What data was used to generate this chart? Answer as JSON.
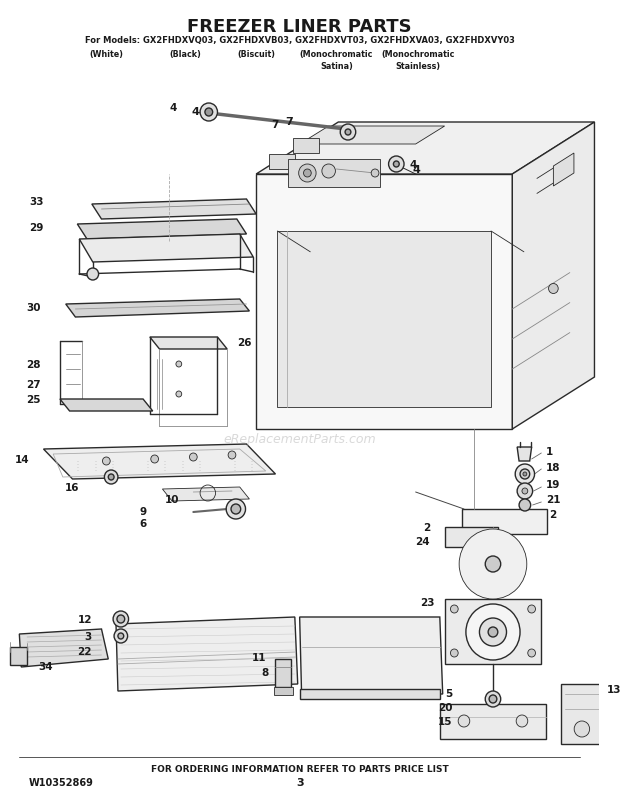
{
  "title": "FREEZER LINER PARTS",
  "sub1": "For Models: GX2FHDXVQ03, GX2FHDXVB03, GX2FHDXVT03, GX2FHDXVA03, GX2FHDXVY03",
  "sub2a": "(White)",
  "sub2b": "(Black)",
  "sub2c": "(Biscuit)",
  "sub2d": "(Monochromatic",
  "sub2e": "(Monochromatic",
  "sub3d": "Satina)",
  "sub3e": "Stainless)",
  "footer_left": "W10352869",
  "footer_center": "FOR ORDERING INFORMATION REFER TO PARTS PRICE LIST",
  "footer_page": "3",
  "watermark": "eReplacementParts.com",
  "bg": "#ffffff",
  "lc": "#2a2a2a",
  "tc": "#1a1a1a"
}
